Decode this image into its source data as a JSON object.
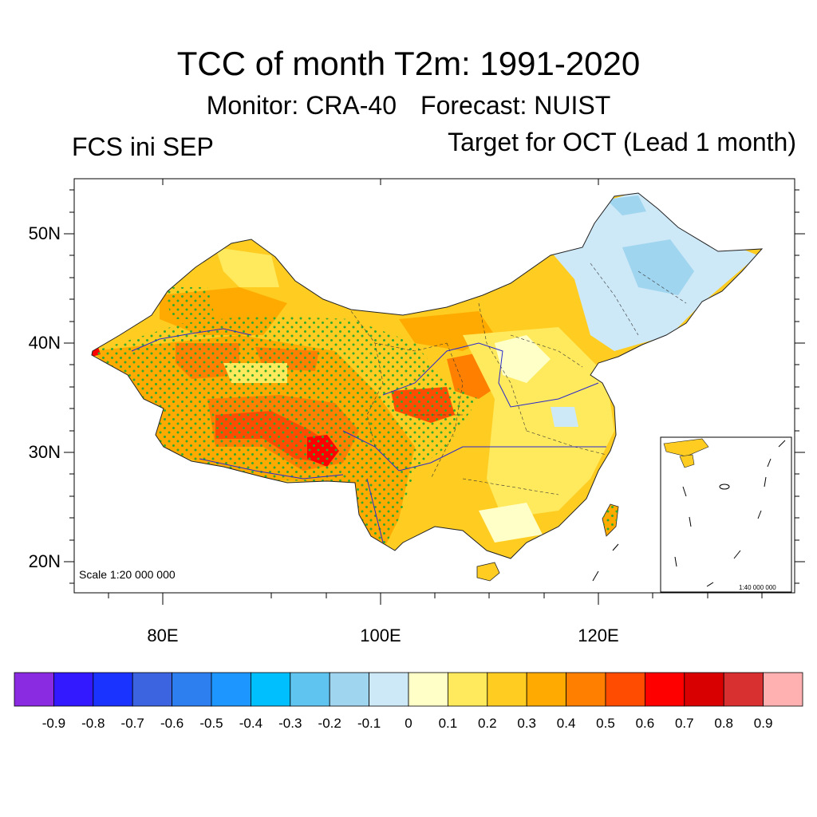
{
  "title": "TCC of month T2m: 1991-2020",
  "subtitle_monitor": "Monitor: CRA-40",
  "subtitle_forecast": "Forecast: NUIST",
  "left_label": "FCS ini SEP",
  "right_label": "Target for OCT (Lead 1 month)",
  "lat_labels": [
    "50N",
    "40N",
    "30N",
    "20N"
  ],
  "lon_labels": [
    "80E",
    "100E",
    "120E"
  ],
  "scale_main": "Scale 1:20 000 000",
  "scale_inset": "1:40 000 000",
  "colorbar": {
    "colors": [
      "#8a2be2",
      "#3219ff",
      "#1a33ff",
      "#3d64e0",
      "#2d7ff0",
      "#1e96ff",
      "#00bfff",
      "#5fc4f0",
      "#a0d5f0",
      "#cde8f7",
      "#ffffc8",
      "#ffe95c",
      "#ffcc22",
      "#ffaa00",
      "#ff8000",
      "#ff4c00",
      "#ff0000",
      "#d80000",
      "#d83030",
      "#ffb0b0"
    ],
    "labels": [
      "-0.9",
      "-0.8",
      "-0.7",
      "-0.6",
      "-0.5",
      "-0.4",
      "-0.3",
      "-0.2",
      "-0.1",
      "0",
      "0.1",
      "0.2",
      "0.3",
      "0.4",
      "0.5",
      "0.6",
      "0.7",
      "0.8",
      "0.9"
    ]
  }
}
